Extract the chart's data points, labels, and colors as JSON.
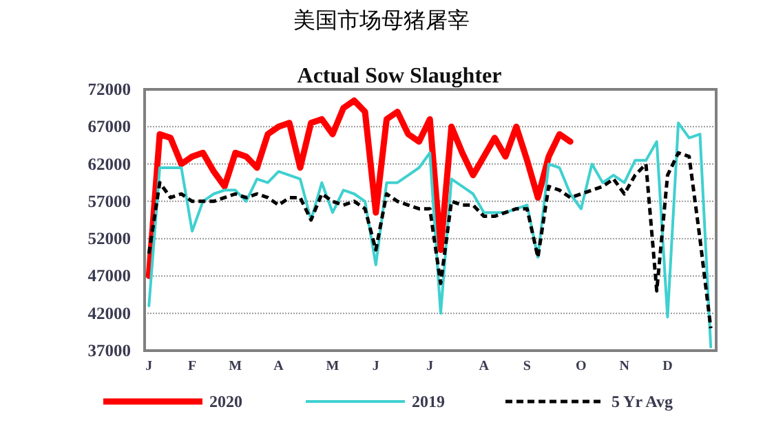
{
  "chart_data": {
    "type": "line",
    "title": "美国市场母猪屠宰",
    "subtitle": "Actual Sow Slaughter",
    "categories": [
      "J",
      null,
      null,
      null,
      "F",
      null,
      null,
      null,
      "M",
      null,
      null,
      null,
      "A",
      null,
      null,
      null,
      null,
      "M",
      null,
      null,
      null,
      "J",
      null,
      null,
      null,
      null,
      "J",
      null,
      null,
      null,
      null,
      "A",
      null,
      null,
      null,
      "S",
      null,
      null,
      null,
      null,
      "O",
      null,
      null,
      null,
      "N",
      null,
      null,
      null,
      "D",
      null,
      null,
      null,
      null
    ],
    "ylim": [
      37000,
      72000
    ],
    "yticks": [
      37000,
      42000,
      47000,
      52000,
      57000,
      62000,
      67000,
      72000
    ],
    "grid": "y",
    "legend": "bottom",
    "series": [
      {
        "name": "2020",
        "color": "#ff0000",
        "line_style": "solid",
        "values": [
          47000,
          66000,
          65500,
          62000,
          63000,
          63500,
          61000,
          59000,
          63500,
          63000,
          61500,
          66000,
          67000,
          67500,
          61500,
          67500,
          68000,
          66000,
          69500,
          70500,
          69000,
          55500,
          68000,
          69000,
          66000,
          65000,
          68000,
          50500,
          67000,
          63500,
          60500,
          63000,
          65500,
          63000,
          67000,
          62500,
          57500,
          63000,
          66000,
          65000,
          null,
          null,
          null,
          null,
          null,
          null,
          null,
          null,
          null,
          null,
          null,
          null,
          null
        ]
      },
      {
        "name": "2019",
        "color": "#40d0d0",
        "line_style": "solid",
        "values": [
          43000,
          61500,
          61500,
          61500,
          53000,
          57000,
          58000,
          58500,
          58500,
          57000,
          60000,
          59500,
          61000,
          60500,
          60000,
          54500,
          59500,
          55500,
          58500,
          58000,
          57000,
          48500,
          59500,
          59500,
          60500,
          61500,
          63500,
          42000,
          60000,
          59000,
          58000,
          55500,
          55500,
          55500,
          56000,
          56500,
          49500,
          62000,
          61500,
          58000,
          56000,
          62000,
          59500,
          60500,
          59500,
          62500,
          62500,
          65000,
          41500,
          67500,
          65500,
          66000,
          37500
        ]
      },
      {
        "name": "5 Yr Avg",
        "color": "#000000",
        "line_style": "dashed",
        "values": [
          50000,
          59500,
          57500,
          58000,
          57000,
          57000,
          57000,
          57500,
          58000,
          57500,
          58000,
          57500,
          56500,
          57500,
          57500,
          54500,
          58000,
          57000,
          56500,
          57000,
          56000,
          50500,
          58000,
          57000,
          56500,
          56000,
          56000,
          46000,
          57000,
          56500,
          56500,
          55000,
          55000,
          55500,
          56000,
          56000,
          49500,
          59000,
          58500,
          57500,
          58000,
          58500,
          59000,
          60000,
          58000,
          60500,
          62000,
          45000,
          60500,
          63500,
          63000,
          52000,
          40000
        ]
      }
    ]
  }
}
